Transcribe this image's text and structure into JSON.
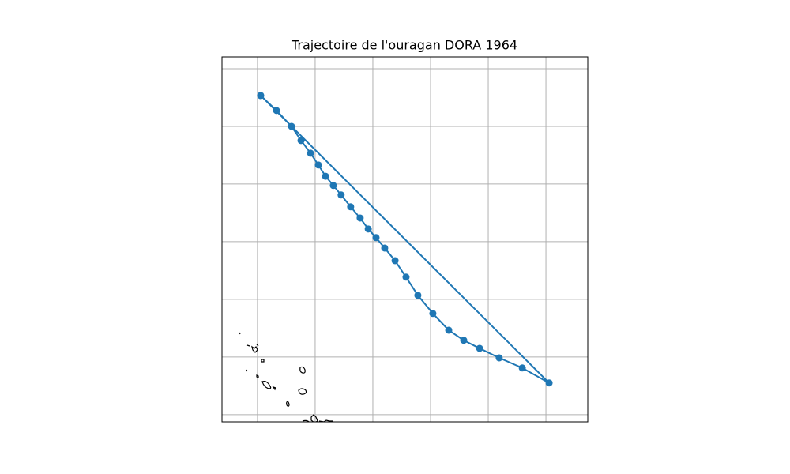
{
  "chart_data": {
    "type": "line",
    "title": "Trajectoire de l'ouragan DORA 1964",
    "x": [
      -27.89,
      -27.34,
      -26.82,
      -26.49,
      -26.16,
      -25.89,
      -25.64,
      -25.37,
      -25.1,
      -24.77,
      -24.44,
      -24.16,
      -23.89,
      -23.59,
      -23.23,
      -22.85,
      -22.44,
      -21.92,
      -21.37,
      -20.85,
      -20.3,
      -19.62,
      -18.82,
      -17.89,
      -27.89
    ],
    "values": [
      23.07,
      22.55,
      22.0,
      21.51,
      21.07,
      20.66,
      20.27,
      19.95,
      19.62,
      19.21,
      18.82,
      18.44,
      18.14,
      17.78,
      17.34,
      16.77,
      16.14,
      15.51,
      14.93,
      14.58,
      14.3,
      13.97,
      13.62,
      13.1,
      23.07
    ],
    "color": "#1f77b4",
    "markers": true,
    "xlim": [
      -29.23,
      -16.55
    ],
    "ylim": [
      11.75,
      24.41
    ],
    "xticks": [
      -28,
      -26,
      -24,
      -22,
      -20,
      -18
    ],
    "yticks": [
      12,
      14,
      16,
      18,
      20,
      22,
      24
    ],
    "grid": true
  }
}
